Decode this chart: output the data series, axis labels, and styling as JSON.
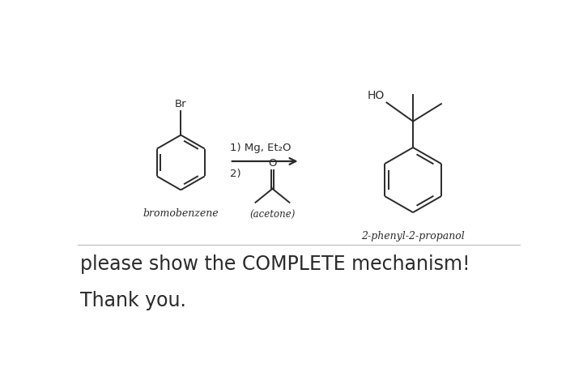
{
  "bg_color": "#ffffff",
  "bottom_text_line1": "please show the COMPLETE mechanism!",
  "bottom_text_line2": "Thank you.",
  "label_bromobenzene": "bromobenzene",
  "label_product": "2-phenyl-2-propanol",
  "label_acetone": "(acetone)",
  "reaction_step1": "1) Mg, Et₂O",
  "reaction_step2": "2)",
  "line_color": "#2a2a2a",
  "text_color": "#2a2a2a",
  "br_label": "Br",
  "ho_label": "HO",
  "o_label": "O"
}
